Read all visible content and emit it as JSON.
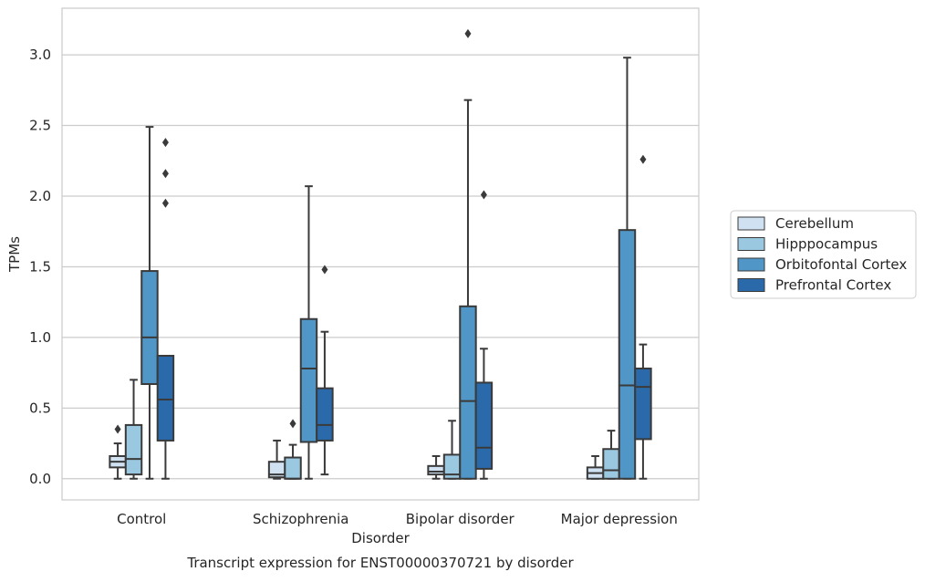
{
  "chart_data": {
    "type": "box",
    "xlabel": "Disorder",
    "ylabel": "TPMs",
    "caption": "Transcript expression for ENST00000370721 by disorder",
    "categories": [
      "Control",
      "Schizophrenia",
      "Bipolar disorder",
      "Major depression"
    ],
    "ylim": [
      -0.15,
      3.33
    ],
    "yticks": [
      0.0,
      0.5,
      1.0,
      1.5,
      2.0,
      2.5,
      3.0
    ],
    "ytick_labels": [
      "0.0",
      "0.5",
      "1.0",
      "1.5",
      "2.0",
      "2.5",
      "3.0"
    ],
    "grid": "horizontal",
    "legend_position": "right",
    "series": [
      {
        "name": "Cerebellum",
        "color": "#d0e1f2",
        "boxes": [
          {
            "whislo": 0.0,
            "q1": 0.08,
            "med": 0.12,
            "q3": 0.16,
            "whishi": 0.25,
            "fliers": [
              0.35
            ]
          },
          {
            "whislo": 0.0,
            "q1": 0.01,
            "med": 0.03,
            "q3": 0.12,
            "whishi": 0.27,
            "fliers": []
          },
          {
            "whislo": 0.0,
            "q1": 0.03,
            "med": 0.05,
            "q3": 0.09,
            "whishi": 0.16,
            "fliers": []
          },
          {
            "whislo": 0.0,
            "q1": 0.0,
            "med": 0.04,
            "q3": 0.08,
            "whishi": 0.16,
            "fliers": []
          }
        ]
      },
      {
        "name": "Hipppocampus",
        "color": "#9ac8e0",
        "boxes": [
          {
            "whislo": 0.0,
            "q1": 0.03,
            "med": 0.14,
            "q3": 0.38,
            "whishi": 0.7,
            "fliers": []
          },
          {
            "whislo": 0.0,
            "q1": 0.0,
            "med": 0.0,
            "q3": 0.15,
            "whishi": 0.24,
            "fliers": [
              0.39
            ]
          },
          {
            "whislo": 0.0,
            "q1": 0.0,
            "med": 0.03,
            "q3": 0.17,
            "whishi": 0.41,
            "fliers": []
          },
          {
            "whislo": 0.0,
            "q1": 0.0,
            "med": 0.06,
            "q3": 0.21,
            "whishi": 0.34,
            "fliers": []
          }
        ]
      },
      {
        "name": "Orbitofontal Cortex",
        "color": "#5096c6",
        "boxes": [
          {
            "whislo": 0.0,
            "q1": 0.67,
            "med": 1.0,
            "q3": 1.47,
            "whishi": 2.49,
            "fliers": []
          },
          {
            "whislo": 0.0,
            "q1": 0.26,
            "med": 0.78,
            "q3": 1.13,
            "whishi": 2.07,
            "fliers": []
          },
          {
            "whislo": 0.0,
            "q1": 0.0,
            "med": 0.55,
            "q3": 1.22,
            "whishi": 2.68,
            "fliers": [
              3.15
            ]
          },
          {
            "whislo": 0.0,
            "q1": 0.0,
            "med": 0.66,
            "q3": 1.76,
            "whishi": 2.98,
            "fliers": []
          }
        ]
      },
      {
        "name": "Prefrontal Cortex",
        "color": "#2a6aab",
        "boxes": [
          {
            "whislo": 0.0,
            "q1": 0.27,
            "med": 0.56,
            "q3": 0.87,
            "whishi": 0.87,
            "fliers": [
              1.95,
              2.16,
              2.38
            ]
          },
          {
            "whislo": 0.03,
            "q1": 0.27,
            "med": 0.38,
            "q3": 0.64,
            "whishi": 1.04,
            "fliers": [
              1.48
            ]
          },
          {
            "whislo": 0.0,
            "q1": 0.07,
            "med": 0.22,
            "q3": 0.68,
            "whishi": 0.92,
            "fliers": [
              2.01
            ]
          },
          {
            "whislo": 0.0,
            "q1": 0.28,
            "med": 0.65,
            "q3": 0.78,
            "whishi": 0.95,
            "fliers": [
              2.26
            ]
          }
        ]
      }
    ]
  }
}
